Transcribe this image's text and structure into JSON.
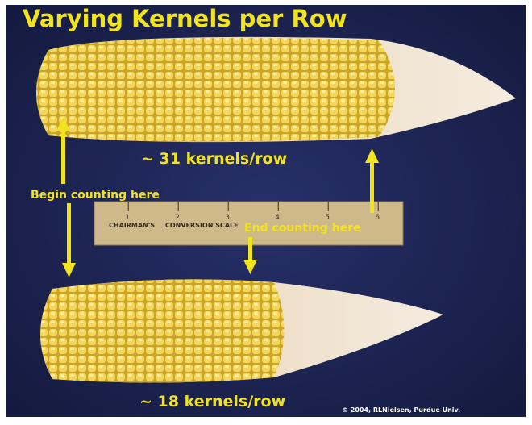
{
  "title": "Varying Kernels per Row",
  "annotations": {
    "top_count": "~ 31 kernels/row",
    "begin": "Begin counting here",
    "end": "End counting here",
    "bottom_count": "~ 18 kernels/row"
  },
  "ruler": {
    "brand": "CHAIRMAN'S",
    "scale": "CONVERSION SCALE",
    "inches": [
      "1",
      "2",
      "3",
      "4",
      "5",
      "6"
    ]
  },
  "credit": "© 2004, RLNielsen, Purdue Univ."
}
